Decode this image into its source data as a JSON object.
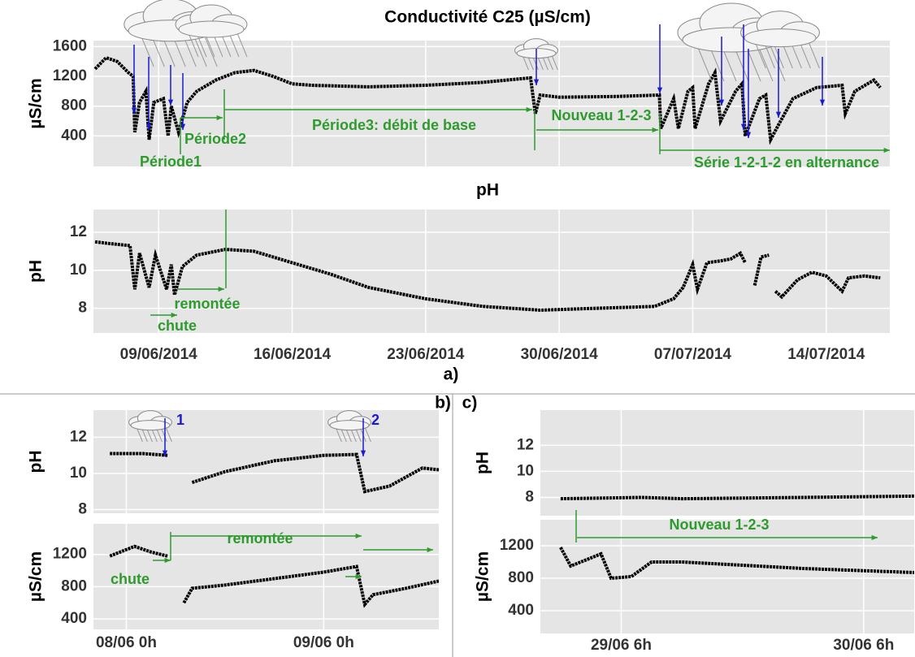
{
  "chart_data": [
    {
      "type": "line",
      "title": "Conductivité C25 (µS/cm)",
      "y_label": "µS/cm",
      "color": "#000000",
      "annotation_color": "#2e9b2e",
      "xlim": [
        "05/06/2014 14h",
        "17/07/2014 8h"
      ],
      "ylim": [
        -10,
        1680
      ],
      "yticks": [
        400,
        800,
        1200,
        1600
      ],
      "grid": true,
      "x": [
        "05/06/2014 16h",
        "06/06/2014 6h",
        "06/06/2014 20h",
        "07/06/2014 10h",
        "07/06/2014 16h",
        "07/06/2014 18h",
        "08/06/2014 0h",
        "08/06/2014 8h",
        "08/06/2014 12h",
        "08/06/2014 18h",
        "09/06/2014 6h",
        "09/06/2014 12h",
        "09/06/2014 16h",
        "10/06/2014 1h",
        "10/06/2014 12h",
        "11/06/2014 0h",
        "12/06/2014 0h",
        "13/06/2014 0h",
        "14/06/2014 0h",
        "15/06/2014 0h",
        "16/06/2014 0h",
        "17/06/2014 0h",
        "20/06/2014 0h",
        "23/06/2014 0h",
        "26/06/2014 0h",
        "28/06/2014 12h",
        "28/06/2014 18h",
        "29/06/2014 0h",
        "30/06/2014 0h",
        "03/07/2014 0h",
        "05/07/2014 6h",
        "05/07/2014 8h",
        "06/07/2014 0h",
        "06/07/2014 6h",
        "06/07/2014 18h",
        "07/07/2014 0h",
        "07/07/2014 3h",
        "07/07/2014 20h",
        "08/07/2014 4h",
        "08/07/2014 11h",
        "09/07/2014 6h",
        "09/07/2014 14h",
        "09/07/2014 18h",
        "10/07/2014 12h",
        "10/07/2014 20h",
        "11/07/2014 2h",
        "11/07/2014 12h",
        "12/07/2014 6h",
        "13/07/2014 12h",
        "14/07/2014 20h",
        "15/07/2014 0h",
        "15/07/2014 12h",
        "16/07/2014 12h",
        "16/07/2014 20h"
      ],
      "values": [
        1300,
        1450,
        1400,
        1250,
        1200,
        450,
        850,
        1000,
        350,
        850,
        900,
        400,
        800,
        450,
        850,
        1000,
        1150,
        1250,
        1280,
        1200,
        1100,
        1080,
        1060,
        1080,
        1120,
        1180,
        700,
        950,
        920,
        930,
        950,
        500,
        900,
        500,
        1000,
        1050,
        500,
        1100,
        1250,
        600,
        1000,
        1100,
        400,
        900,
        950,
        350,
        550,
        900,
        1050,
        1080,
        700,
        1000,
        1150,
        1050
      ],
      "annotations": [
        "Période1",
        "Période2",
        "Période3: débit de base",
        "Nouveau 1-2-3",
        "Série 1-2-1-2 en alternance"
      ]
    },
    {
      "type": "line",
      "title": "pH",
      "y_label": "pH",
      "caption": "a)",
      "color": "#000000",
      "annotation_color": "#2e9b2e",
      "xlim": [
        "05/06/2014 14h",
        "17/07/2014 8h"
      ],
      "ylim": [
        6.7,
        13.2
      ],
      "yticks": [
        8,
        10,
        12
      ],
      "grid": true,
      "xticks": [
        "09/06/2014",
        "16/06/2014",
        "23/06/2014",
        "30/06/2014",
        "07/07/2014",
        "14/07/2014"
      ],
      "x": [
        "05/06/2014 16h",
        "06/06/2014 12h",
        "07/06/2014 12h",
        "07/06/2014 18h",
        "08/06/2014 0h",
        "08/06/2014 12h",
        "08/06/2014 20h",
        "09/06/2014 10h",
        "09/06/2014 16h",
        "09/06/2014 20h",
        "10/06/2014 6h",
        "11/06/2014 0h",
        "12/06/2014 12h",
        "14/06/2014 0h",
        "16/06/2014 0h",
        "18/06/2014 0h",
        "20/06/2014 0h",
        "23/06/2014 0h",
        "26/06/2014 0h",
        "29/06/2014 0h",
        "02/07/2014 0h",
        "05/07/2014 0h",
        "06/07/2014 0h",
        "06/07/2014 12h",
        "07/07/2014 0h",
        "07/07/2014 6h",
        "07/07/2014 18h",
        "08/07/2014 12h",
        "09/07/2014 0h",
        "09/07/2014 12h",
        "09/07/2014 18h",
        "10/07/2014 0h",
        "10/07/2014 6h",
        "10/07/2014 14h",
        "11/07/2014 0h",
        "11/07/2014 6h",
        "11/07/2014 8h",
        "11/07/2014 16h",
        "12/07/2014 12h",
        "13/07/2014 6h",
        "14/07/2014 0h",
        "14/07/2014 20h",
        "15/07/2014 4h",
        "16/07/2014 0h",
        "16/07/2014 20h"
      ],
      "values": [
        11.5,
        11.4,
        11.3,
        9.0,
        10.9,
        9.1,
        10.8,
        9.0,
        10.3,
        8.7,
        10.2,
        10.8,
        11.1,
        11.0,
        10.4,
        9.8,
        9.1,
        8.5,
        8.1,
        7.9,
        8.0,
        8.1,
        8.5,
        9.1,
        10.3,
        9.0,
        10.4,
        10.5,
        10.6,
        10.9,
        10.4,
        null,
        9.2,
        10.7,
        10.8,
        null,
        8.9,
        8.6,
        9.5,
        9.9,
        9.7,
        8.9,
        9.6,
        9.7,
        9.6
      ],
      "annotations": [
        "remontée",
        "chute"
      ]
    },
    {
      "type": "line",
      "y_label": "pH",
      "panel_label": "b)",
      "color": "#000000",
      "annotation_color": "#1a1ad0",
      "xlim": [
        "07/06 20h",
        "09/06 14h"
      ],
      "ylim": [
        7.8,
        13.5
      ],
      "yticks": [
        8,
        10,
        12
      ],
      "grid": true,
      "x": [
        "07/06 22h",
        "08/06 2h",
        "08/06 5h",
        "08/06 6h",
        "08/06 8h",
        "08/06 12h",
        "08/06 18h",
        "09/06 0h",
        "09/06 4h",
        "09/06 5h",
        "09/06 8h",
        "09/06 12h",
        "09/06 14h"
      ],
      "values": [
        11.1,
        11.1,
        11.0,
        null,
        9.5,
        10.1,
        10.7,
        11.0,
        11.05,
        9.0,
        9.3,
        10.3,
        10.2
      ],
      "annotations": [
        "1",
        "2"
      ]
    },
    {
      "type": "line",
      "y_label": "µS/cm",
      "color": "#000000",
      "annotation_color": "#2e9b2e",
      "xlim": [
        "07/06 20h",
        "09/06 14h"
      ],
      "ylim": [
        270,
        1580
      ],
      "yticks": [
        400,
        800,
        1200
      ],
      "grid": true,
      "xticks": [
        "08/06 0h",
        "09/06 0h"
      ],
      "x": [
        "07/06 22h",
        "08/06 1h",
        "08/06 3h",
        "08/06 5h",
        "08/06 6h",
        "08/06 7h",
        "08/06 8h",
        "08/06 12h",
        "08/06 18h",
        "09/06 0h",
        "09/06 4h",
        "09/06 5h",
        "09/06 6h",
        "09/06 10h",
        "09/06 14h"
      ],
      "values": [
        1180,
        1300,
        1230,
        1180,
        null,
        600,
        780,
        820,
        900,
        980,
        1050,
        580,
        700,
        780,
        870
      ],
      "annotations": [
        "chute",
        "remontée"
      ]
    },
    {
      "type": "line",
      "y_label": "pH",
      "panel_label": "c)",
      "color": "#000000",
      "xlim": [
        "28/06 22h",
        "30/06 11h"
      ],
      "ylim": [
        6.6,
        14.7
      ],
      "yticks": [
        8,
        10,
        12
      ],
      "grid": true,
      "x": [
        "29/06 0h",
        "29/06 8h",
        "29/06 12h",
        "30/06 0h",
        "30/06 11h"
      ],
      "values": [
        7.9,
        8.0,
        7.9,
        8.0,
        8.1
      ]
    },
    {
      "type": "line",
      "y_label": "µS/cm",
      "color": "#000000",
      "annotation_color": "#2e9b2e",
      "xlim": [
        "28/06 22h",
        "30/06 11h"
      ],
      "ylim": [
        120,
        1520
      ],
      "yticks": [
        400,
        800,
        1200
      ],
      "grid": true,
      "xticks": [
        "29/06 6h",
        "30/06 6h"
      ],
      "x": [
        "29/06 0h",
        "29/06 1h",
        "29/06 3h",
        "29/06 4h",
        "29/06 5h",
        "29/06 7h",
        "29/06 9h",
        "29/06 12h",
        "30/06 0h",
        "30/06 11h"
      ],
      "values": [
        1180,
        950,
        1050,
        1100,
        800,
        820,
        1000,
        1000,
        920,
        870
      ],
      "annotations": [
        "Nouveau 1-2-3"
      ]
    }
  ]
}
